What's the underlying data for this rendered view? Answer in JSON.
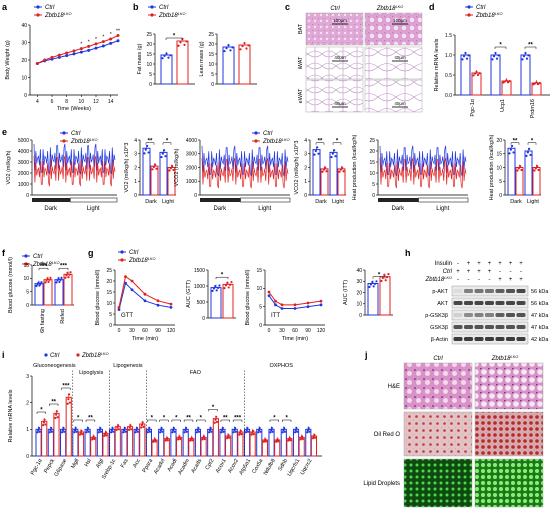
{
  "colors": {
    "ctrl": "#1f35e0",
    "ko": "#e0201f",
    "he_bg": "#e0a0d0",
    "he_cell": "#9040a0",
    "oil_bg": "#e8c8c8",
    "oil_drop": "#c03030",
    "ld_bg": "#0a300a",
    "ld_drop": "#50e050",
    "ld_bright": "#bff5a0"
  },
  "legend": {
    "ctrl": "Ctrl",
    "ko": "Zbtb18",
    "ko_sup": "LKO"
  },
  "panels": {
    "a": {
      "letter": "a",
      "ylabel": "Body Weight (g)",
      "xlabel": "Time (Weeks)",
      "stars": [
        "*",
        "*",
        "*",
        "*",
        "*",
        "**"
      ],
      "chart_data": {
        "type": "line",
        "x": [
          4,
          5,
          6,
          7,
          8,
          9,
          10,
          11,
          12,
          13,
          14,
          15
        ],
        "xticks": [
          "4",
          "6",
          "8",
          "10",
          "12",
          "14"
        ],
        "yticks": [
          "0",
          "10",
          "20",
          "30",
          "40"
        ],
        "ylim": [
          0,
          40
        ],
        "series": [
          {
            "name": "Ctrl",
            "values": [
              18,
              19.5,
              20.5,
              21.5,
              22.5,
              23.5,
              24.5,
              25.5,
              26.8,
              28,
              29.5,
              31
            ]
          },
          {
            "name": "Zbtb18LKO",
            "values": [
              18,
              20,
              21.5,
              22.8,
              24,
              25.2,
              26.5,
              27.8,
              29.2,
              30.5,
              32,
              34
            ]
          }
        ]
      }
    },
    "b": {
      "letter": "b",
      "fat": {
        "ylabel": "Fat mass (g)",
        "yticks": [
          "0",
          "5",
          "10",
          "15",
          "20",
          "25"
        ],
        "star": "*",
        "chart_data": {
          "type": "bar",
          "categories": [
            "Ctrl",
            "Zbtb18LKO"
          ],
          "values": [
            14.5,
            21.5
          ],
          "ylim": [
            0,
            25
          ]
        }
      },
      "lean": {
        "ylabel": "Lean mass (g)",
        "yticks": [
          "0",
          "5",
          "10",
          "15",
          "20",
          "25"
        ],
        "chart_data": {
          "type": "bar",
          "categories": [
            "Ctrl",
            "Zbtb18LKO"
          ],
          "values": [
            18.5,
            19.5
          ],
          "ylim": [
            0,
            25
          ]
        }
      }
    },
    "c": {
      "letter": "c",
      "col_ctrl": "Ctrl",
      "col_ko": "Zbtb18",
      "col_ko_sup": "LKO",
      "rows": [
        "BAT",
        "iWAT",
        "eWAT"
      ],
      "scalebars": [
        "100μm",
        "100μm",
        "40μm",
        "40μm",
        "40μm",
        "40μm"
      ]
    },
    "d": {
      "letter": "d",
      "ylabel": "Relative mRNA levels",
      "stars": [
        "*",
        "**"
      ],
      "chart_data": {
        "type": "bar",
        "categories": [
          "Pgc-1α",
          "Ucp1",
          "Prdm16"
        ],
        "series": [
          {
            "name": "Ctrl",
            "values": [
              1.0,
              1.0,
              1.0
            ]
          },
          {
            "name": "Zbtb18LKO",
            "values": [
              0.55,
              0.35,
              0.3
            ]
          }
        ],
        "yticks": [
          "0.0",
          "0.5",
          "1.0",
          "1.5"
        ],
        "ylim": [
          0,
          1.5
        ]
      }
    },
    "e": {
      "letter": "e",
      "vo2_trace_ylabel": "VO2 (ml/kg/h)",
      "vo2_trace_yticks": [
        "0",
        "1000",
        "2000",
        "3000",
        "4000",
        "5000"
      ],
      "vo2_bar_ylabel": "VO2 (ml/kg/h) x10^3",
      "vo2_bar_yticks": [
        "0",
        "1",
        "2",
        "3",
        "4"
      ],
      "vco2_trace_ylabel": "VCO2 (ml/kg/h)",
      "vco2_trace_yticks": [
        "0",
        "1000",
        "2000",
        "3000",
        "4000"
      ],
      "vco2_bar_ylabel": "VCO2 (ml/kg/h) x10^3",
      "vco2_bar_yticks": [
        "0",
        "1",
        "2",
        "3",
        "4"
      ],
      "heat_trace_ylabel": "Heat production (kcal/kg/h)",
      "heat_trace_yticks": [
        "0",
        "5",
        "10",
        "15",
        "20",
        "25"
      ],
      "heat_bar_ylabel": "Heat production (kcal/kg/h)",
      "heat_bar_yticks": [
        "0",
        "5",
        "10",
        "15",
        "20"
      ],
      "dark": "Dark",
      "light": "Light",
      "stars_vo2": [
        "**",
        "*"
      ],
      "stars_vco2": [
        "**",
        "*"
      ],
      "stars_heat": [
        "**",
        "*"
      ],
      "chart_data": [
        {
          "type": "bar",
          "title": "",
          "categories": [
            "Dark",
            "Light"
          ],
          "series": [
            {
              "name": "Ctrl",
              "values": [
                3.4,
                3.1
              ]
            },
            {
              "name": "Zbtb18LKO",
              "values": [
                2.1,
                2.0
              ]
            }
          ],
          "ylim": [
            0,
            4
          ]
        },
        {
          "type": "bar",
          "categories": [
            "Dark",
            "Light"
          ],
          "series": [
            {
              "name": "Ctrl",
              "values": [
                3.3,
                3.1
              ]
            },
            {
              "name": "Zbtb18LKO",
              "values": [
                1.9,
                1.9
              ]
            }
          ],
          "ylim": [
            0,
            4
          ]
        },
        {
          "type": "bar",
          "categories": [
            "Dark",
            "Light"
          ],
          "series": [
            {
              "name": "Ctrl",
              "values": [
                17,
                16
              ]
            },
            {
              "name": "Zbtb18LKO",
              "values": [
                10,
                10
              ]
            }
          ],
          "ylim": [
            0,
            20
          ]
        }
      ]
    },
    "f": {
      "letter": "f",
      "ylabel": "Blood glucose (mmol/l)",
      "yticks": [
        "0",
        "5",
        "10",
        "15"
      ],
      "stars": [
        "***",
        "***"
      ],
      "xcats": [
        "6h fasting",
        "Refed"
      ],
      "chart_data": {
        "type": "bar",
        "categories": [
          "6h fasting",
          "Refed"
        ],
        "series": [
          {
            "name": "Ctrl",
            "values": [
              8.0,
              9.5
            ]
          },
          {
            "name": "Zbtb18LKO",
            "values": [
              9.5,
              11.5
            ]
          }
        ],
        "ylim": [
          0,
          15
        ]
      }
    },
    "g": {
      "letter": "g",
      "gtt": {
        "ylabel": "Blood glucose (mmol/l)",
        "label": "GTT",
        "xlabel": "Time (min)",
        "yticks": [
          "0",
          "5",
          "10",
          "15",
          "20",
          "25"
        ],
        "xticks": [
          "0",
          "30",
          "60",
          "90",
          "120"
        ],
        "chart_data": {
          "type": "line",
          "x": [
            0,
            15,
            30,
            60,
            90,
            120
          ],
          "ylim": [
            0,
            25
          ],
          "series": [
            {
              "name": "Ctrl",
              "values": [
                7,
                19,
                16,
                11,
                9,
                8
              ]
            },
            {
              "name": "Zbtb18LKO",
              "values": [
                8,
                22,
                20,
                14,
                11,
                9.5
              ]
            }
          ]
        }
      },
      "auc_gtt": {
        "ylabel": "AUC (GTT)",
        "yticks": [
          "0",
          "500",
          "1000",
          "1500"
        ],
        "star": "*",
        "chart_data": {
          "type": "bar",
          "categories": [
            "Ctrl",
            "Zbtb18LKO"
          ],
          "values": [
            950,
            1050
          ],
          "ylim": [
            0,
            1500
          ]
        }
      },
      "itt": {
        "ylabel": "Blood glucose (mmol/l)",
        "label": "ITT",
        "xlabel": "Time (min)",
        "yticks": [
          "0",
          "5",
          "10",
          "15"
        ],
        "xticks": [
          "0",
          "30",
          "60",
          "90",
          "120"
        ],
        "chart_data": {
          "type": "line",
          "x": [
            0,
            15,
            30,
            60,
            90,
            120
          ],
          "ylim": [
            0,
            15
          ],
          "series": [
            {
              "name": "Ctrl",
              "values": [
                8,
                5.5,
                4.5,
                4.5,
                5,
                5.5
              ]
            },
            {
              "name": "Zbtb18LKO",
              "values": [
                9,
                6.5,
                5.5,
                5.5,
                6,
                6.5
              ]
            }
          ]
        }
      },
      "auc_itt": {
        "ylabel": "AUC (ITT)",
        "yticks": [
          "0",
          "10",
          "20",
          "30",
          "40"
        ],
        "star": "*",
        "chart_data": {
          "type": "bar",
          "categories": [
            "Ctrl",
            "Zbtb18LKO"
          ],
          "values": [
            28,
            34
          ],
          "ylim": [
            0,
            40
          ]
        }
      }
    },
    "h": {
      "letter": "h",
      "insulin": "Insulin",
      "ctrl": "Ctrl",
      "ko": "Zbtb18",
      "ko_sup": "LKO",
      "signs_insulin": [
        "-",
        "+",
        "+",
        "+",
        "+",
        "+",
        "+"
      ],
      "signs_ctrl": [
        "+",
        "+",
        "+",
        "+",
        "-",
        "-",
        "-"
      ],
      "signs_ko": [
        "-",
        "-",
        "-",
        "-",
        "+",
        "+",
        "+"
      ],
      "rows": [
        "p-AKT",
        "AKT",
        "p-GSK3β",
        "GSK3β",
        "β-Actin"
      ],
      "kda": [
        "56 kDa",
        "56 kDa",
        "47 kDa",
        "47 kDa",
        "42 kDa"
      ],
      "intensity": [
        [
          0.15,
          0.55,
          0.6,
          0.6,
          0.7,
          0.75,
          0.8
        ],
        [
          0.8,
          0.8,
          0.8,
          0.8,
          0.8,
          0.8,
          0.8
        ],
        [
          0.2,
          0.5,
          0.55,
          0.55,
          0.7,
          0.75,
          0.75
        ],
        [
          0.75,
          0.75,
          0.75,
          0.75,
          0.75,
          0.75,
          0.75
        ],
        [
          0.85,
          0.85,
          0.85,
          0.85,
          0.85,
          0.85,
          0.85
        ]
      ]
    },
    "i": {
      "letter": "i",
      "ylabel": "Relative mRNA levels",
      "yticks": [
        "0",
        "1",
        "2",
        "3"
      ],
      "groups": [
        "Gluconeogenesis",
        "Lipoglysis",
        "Lipogenesis",
        "FAO",
        "OXPHOS"
      ],
      "stars": [
        "*",
        "**",
        "***",
        "*",
        "**",
        "*",
        "*",
        "*",
        "**",
        "*",
        "*",
        "**",
        "***",
        "*",
        "*"
      ],
      "chart_data": {
        "type": "bar",
        "categories": [
          "Pgc-1α",
          "Pepck",
          "G6pase",
          "Mgll",
          "Hsl",
          "Atgl",
          "Srebp-1c",
          "Fas",
          "Acc",
          "Ppara",
          "Acadvl",
          "Acadl",
          "Acadm",
          "Acads",
          "Cpt2",
          "Acox1",
          "Acox2",
          "Atp5a1",
          "Cox5a",
          "Ndufb8",
          "Sdhb",
          "Uqcrfs1",
          "Uqcrc2"
        ],
        "series": [
          {
            "name": "Ctrl",
            "values": [
              1,
              1,
              1,
              1,
              1,
              1,
              1,
              1,
              1,
              1,
              1,
              1,
              1,
              1,
              1,
              1,
              1,
              1,
              1,
              1,
              1,
              1,
              1
            ]
          },
          {
            "name": "Zbtb18LKO",
            "values": [
              1.3,
              1.6,
              2.2,
              0.9,
              0.7,
              0.85,
              1.1,
              1.1,
              1.2,
              0.6,
              0.65,
              0.7,
              0.65,
              0.7,
              1.4,
              0.75,
              0.9,
              0.9,
              0.6,
              0.6,
              0.65,
              0.7,
              0.75
            ]
          }
        ],
        "ylim": [
          0,
          3
        ]
      }
    },
    "j": {
      "letter": "j",
      "col_ctrl": "Ctrl",
      "col_ko": "Zbtb18",
      "col_ko_sup": "LKO",
      "rows": [
        "H&E",
        "Oil Red O",
        "Lipid Droplets"
      ]
    }
  }
}
